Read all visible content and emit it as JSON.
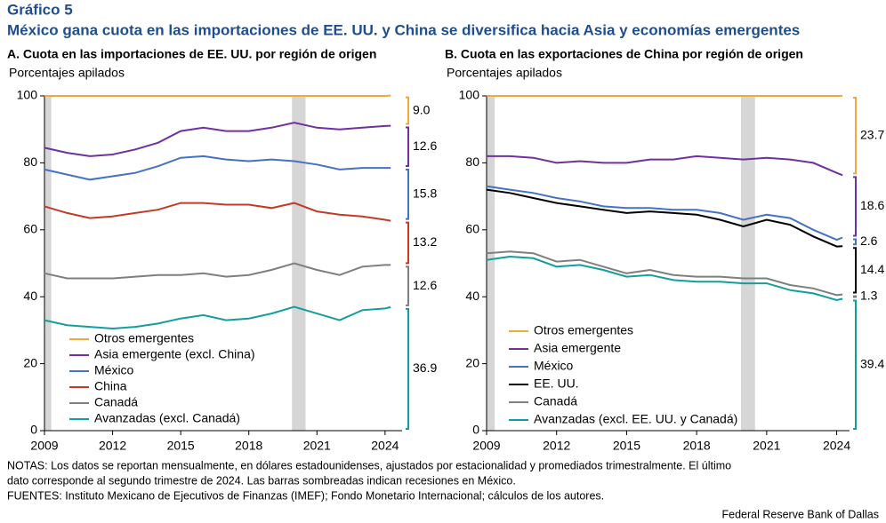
{
  "header": {
    "label": "Gráfico 5",
    "title": "México gana cuota en las importaciones de EE. UU. y China se diversifica hacia Asia y economías emergentes"
  },
  "notes": [
    "NOTAS: Los datos se reportan mensualmente, en dólares estadounidenses, ajustados por estacionalidad y promediados trimestralmente. El último",
    "dato corresponde al segundo trimestre de 2024. Las barras sombreadas indican recesiones en México.",
    "FUENTES: Instituto Mexicano de Ejecutivos de Finanzas (IMEF); Fondo Monetario Internacional; cálculos de los autores."
  ],
  "source": "Federal Reserve Bank of Dallas",
  "chart_data": [
    {
      "type": "stacked-line",
      "title": "A. Cuota en las importaciones de EE. UU. por región de origen",
      "subtitle": "Porcentajes apilados",
      "x": [
        2009,
        2010,
        2011,
        2012,
        2013,
        2014,
        2015,
        2016,
        2017,
        2018,
        2019,
        2020,
        2021,
        2022,
        2023,
        2024,
        2024.25
      ],
      "xlim": [
        2009,
        2024.75
      ],
      "xticks": [
        2009,
        2012,
        2015,
        2018,
        2021,
        2024
      ],
      "ylim": [
        0,
        100
      ],
      "yticks": [
        0,
        20,
        40,
        60,
        80,
        100
      ],
      "shaded": [
        [
          2009,
          2009.3
        ],
        [
          2019.9,
          2020.5
        ]
      ],
      "series": [
        {
          "name": "Otros emergentes",
          "color": "#f2a93b",
          "values": [
            15.5,
            17,
            18,
            17.5,
            16,
            14,
            10.5,
            9.5,
            10.5,
            10.5,
            9.5,
            8,
            9.5,
            10,
            9.5,
            9,
            9.0
          ],
          "value_labels": [
            null,
            null,
            null,
            null,
            null,
            null,
            null,
            null,
            null,
            null,
            null,
            null,
            null,
            null,
            null,
            null,
            "9.0"
          ]
        },
        {
          "name": "Asia emergente (excl. China)",
          "color": "#7030a0",
          "values": [
            6.5,
            6.5,
            7,
            6.5,
            7,
            7,
            8,
            8.5,
            8.5,
            9,
            9.5,
            11.5,
            11,
            12,
            12,
            12.5,
            12.6
          ]
        },
        {
          "name": "México",
          "color": "#4472c4",
          "values": [
            11,
            11.5,
            11.5,
            12,
            12,
            13,
            13.5,
            14,
            13.5,
            13,
            14.5,
            12.5,
            14,
            13.5,
            14.5,
            15.5,
            15.8
          ]
        },
        {
          "name": "China",
          "color": "#c23b22",
          "values": [
            20,
            19.5,
            18,
            18.5,
            19,
            19.5,
            21.5,
            21,
            21.5,
            21,
            18.5,
            18,
            17.5,
            18,
            15,
            13.5,
            13.2
          ]
        },
        {
          "name": "Canadá",
          "color": "#7f7f7f",
          "values": [
            14,
            14,
            14.5,
            15,
            15,
            14.5,
            13,
            12.5,
            13,
            13,
            13,
            13,
            13,
            13.5,
            13,
            13,
            12.6
          ]
        },
        {
          "name": "Avanzadas (excl. Canadá)",
          "color": "#139e9e",
          "values": [
            33,
            31.5,
            31,
            30.5,
            31,
            32,
            33.5,
            34.5,
            33,
            33.5,
            35,
            37,
            35,
            33,
            36,
            36.5,
            36.9
          ]
        }
      ]
    },
    {
      "type": "stacked-line",
      "title": "B. Cuota en las exportaciones de China por región de origen",
      "subtitle": "Porcentajes apilados",
      "x": [
        2009,
        2010,
        2011,
        2012,
        2013,
        2014,
        2015,
        2016,
        2017,
        2018,
        2019,
        2020,
        2021,
        2022,
        2023,
        2024,
        2024.25
      ],
      "xlim": [
        2009,
        2024.55
      ],
      "xticks": [
        2009,
        2012,
        2015,
        2018,
        2021,
        2024
      ],
      "ylim": [
        0,
        100
      ],
      "yticks": [
        0,
        20,
        40,
        60,
        80,
        100
      ],
      "shaded": [
        [
          2009,
          2009.35
        ],
        [
          2019.9,
          2020.5
        ]
      ],
      "series": [
        {
          "name": "Otros emergentes",
          "color": "#f2a93b",
          "values": [
            18,
            18,
            18.5,
            20,
            19.5,
            20,
            20,
            19,
            19,
            18,
            18.5,
            19,
            18.5,
            19,
            20,
            23,
            23.7
          ]
        },
        {
          "name": "Asia emergente",
          "color": "#7030a0",
          "values": [
            9,
            10,
            10.5,
            10.5,
            12,
            13,
            13.5,
            14.5,
            15,
            16,
            16.5,
            18,
            17,
            17.5,
            20,
            20,
            18.6
          ]
        },
        {
          "name": "México",
          "color": "#4472c4",
          "values": [
            1,
            1,
            1.5,
            1.5,
            1.5,
            1,
            1.5,
            1,
            1,
            1.5,
            2,
            2,
            1.5,
            2,
            2,
            2,
            2.6
          ]
        },
        {
          "name": "EE. UU.",
          "color": "#000000",
          "values": [
            19,
            17.5,
            16.5,
            17.5,
            16,
            17,
            18,
            17.5,
            18.5,
            18.5,
            17,
            15.5,
            17.5,
            18,
            15.5,
            14.5,
            14.4
          ]
        },
        {
          "name": "Canadá",
          "color": "#7f7f7f",
          "values": [
            2,
            1.5,
            1.5,
            1.5,
            1.5,
            1,
            1,
            1.5,
            1.5,
            1.5,
            1.5,
            1.5,
            1.5,
            1.5,
            1.5,
            1.5,
            1.3
          ]
        },
        {
          "name": "Avanzadas (excl. EE. UU. y Canadá)",
          "color": "#139e9e",
          "values": [
            51,
            52,
            51.5,
            49,
            49.5,
            48,
            46,
            46.5,
            45,
            44.5,
            44.5,
            44,
            44,
            42,
            41,
            39,
            39.4
          ]
        }
      ]
    }
  ]
}
